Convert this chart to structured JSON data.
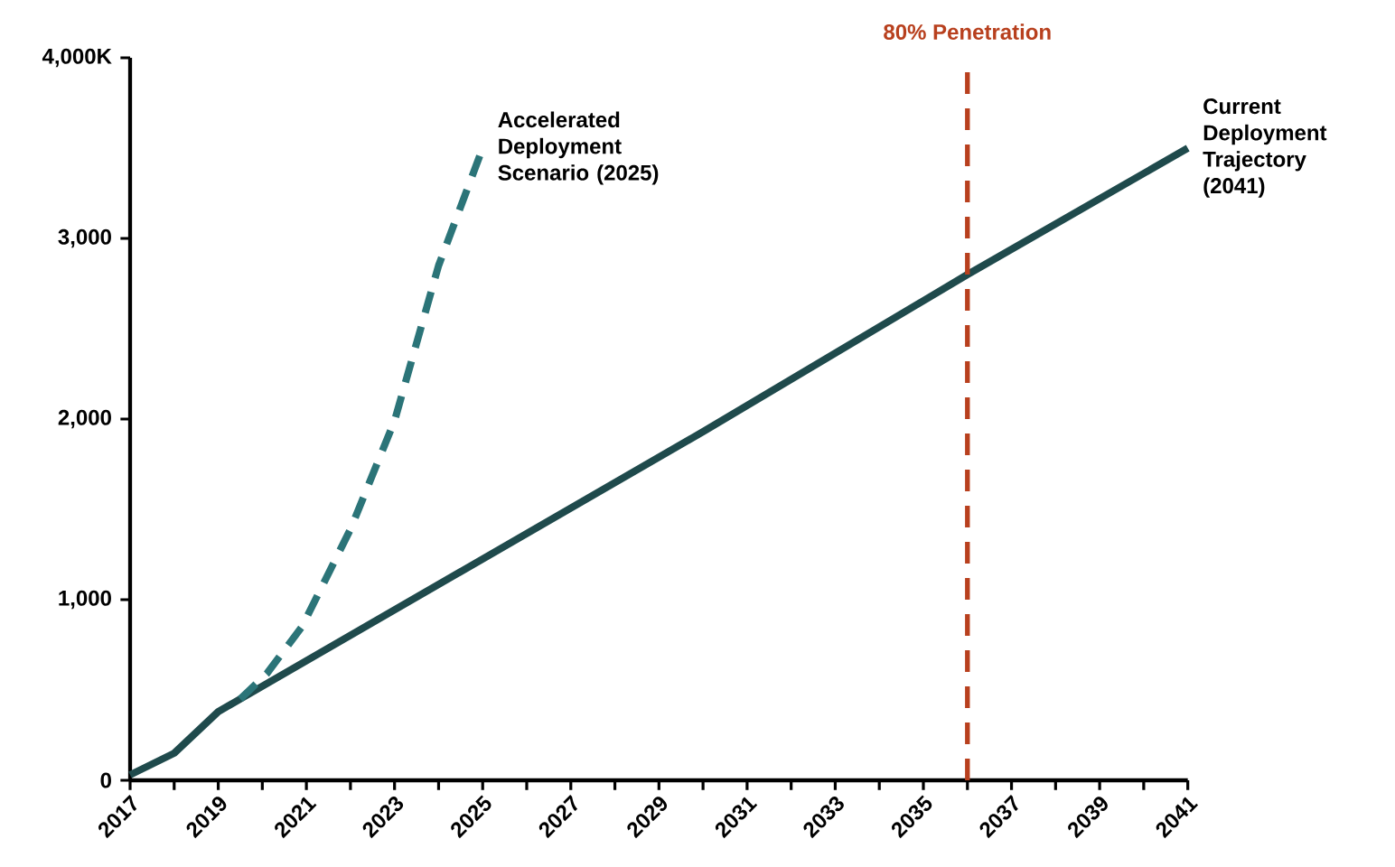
{
  "chart_data": {
    "type": "line",
    "xlim": [
      2017,
      2041
    ],
    "ylim": [
      0,
      4000
    ],
    "xticks": [
      2017,
      {
        "value": 2018,
        "label": null
      },
      2019,
      {
        "value": 2020,
        "label": null
      },
      2021,
      {
        "value": 2022,
        "label": null
      },
      2023,
      {
        "value": 2024,
        "label": null
      },
      2025,
      {
        "value": 2026,
        "label": null
      },
      2027,
      {
        "value": 2028,
        "label": null
      },
      2029,
      {
        "value": 2030,
        "label": null
      },
      2031,
      {
        "value": 2032,
        "label": null
      },
      2033,
      {
        "value": 2034,
        "label": null
      },
      2035,
      {
        "value": 2036,
        "label": null
      },
      2037,
      {
        "value": 2038,
        "label": null
      },
      2039,
      {
        "value": 2040,
        "label": null
      },
      2041
    ],
    "yticks": [
      0,
      {
        "value": 1000,
        "label": "1,000"
      },
      {
        "value": 2000,
        "label": "2,000"
      },
      {
        "value": 3000,
        "label": "3,000"
      },
      {
        "value": 4000,
        "label": "4,000K"
      }
    ],
    "series": [
      {
        "name": "Current Deployment Trajectory (2041)",
        "color": "#1f4a4c",
        "line_style": "solid",
        "x": [
          2017,
          2018,
          2019,
          2030,
          2036,
          2041
        ],
        "values": [
          30,
          150,
          380,
          1930,
          2800,
          3500
        ]
      },
      {
        "name": "Accelerated Deployment Scenario (2025)",
        "color": "#2b7478",
        "line_style": "dashed",
        "x": [
          2019.5,
          2020.1,
          2020.9,
          2022,
          2023,
          2024,
          2025
        ],
        "values": [
          450,
          590,
          850,
          1390,
          1990,
          2850,
          3500
        ]
      }
    ],
    "ref_lines": [
      {
        "axis": "x",
        "value": 2036,
        "label": "80% Penetration",
        "color": "#b8401e",
        "line_style": "dashed"
      }
    ]
  }
}
